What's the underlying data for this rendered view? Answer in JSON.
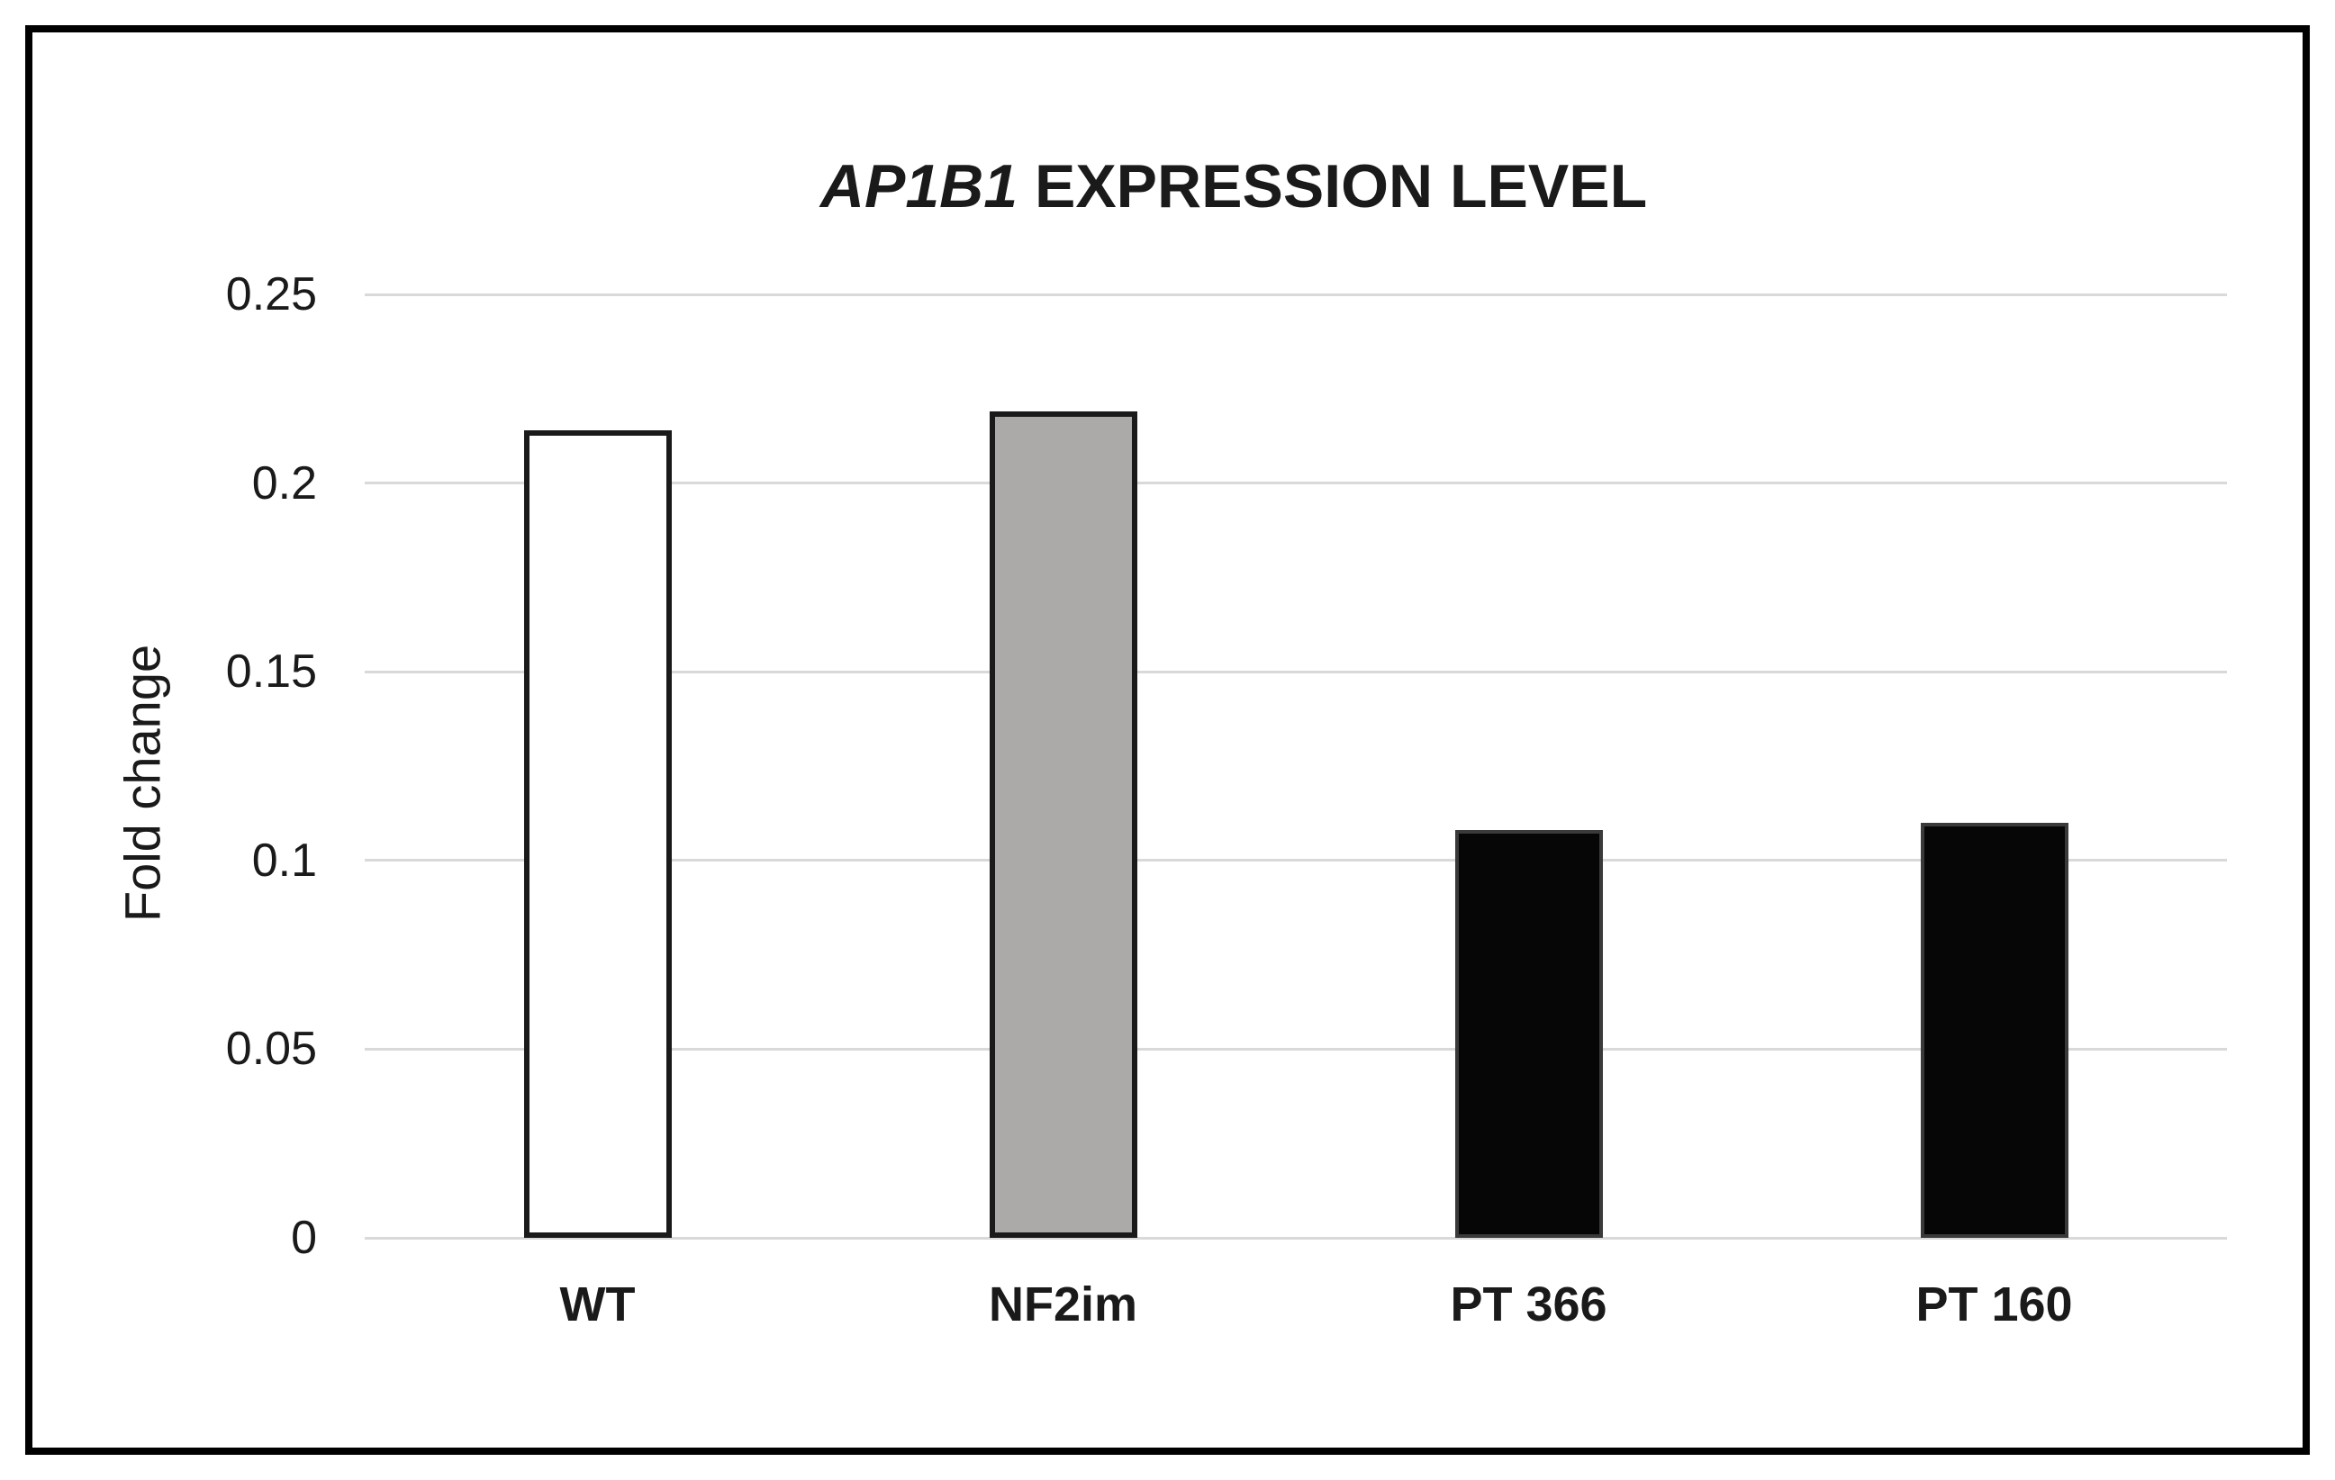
{
  "title": {
    "gene": "AP1B1",
    "suffix": " EXPRESSION LEVEL"
  },
  "chart_data": {
    "type": "bar",
    "title": "AP1B1 EXPRESSION LEVEL",
    "title_italic_part": "AP1B1",
    "xlabel": "",
    "ylabel": "Fold change",
    "categories": [
      "WT",
      "NF2im",
      "PT 366",
      "PT 160"
    ],
    "values": [
      0.214,
      0.219,
      0.108,
      0.11
    ],
    "ylim": [
      0,
      0.25
    ],
    "yticks": [
      0,
      0.05,
      0.1,
      0.15,
      0.2,
      0.25
    ],
    "ytick_labels": [
      "0",
      "0.05",
      "0.1",
      "0.15",
      "0.2",
      "0.25"
    ],
    "grid": true,
    "legend": "none",
    "colors": {
      "gridline": "#d9d9d9",
      "text": "#1a1a1a",
      "frame_border": "#000000",
      "bar_fills": [
        "#ffffff",
        "#acaaa8",
        "#060606",
        "#060606"
      ],
      "bar_borders": [
        "#1a1a1a",
        "#1a1a1a",
        "#3a3a3a",
        "#3a3a3a"
      ]
    }
  }
}
